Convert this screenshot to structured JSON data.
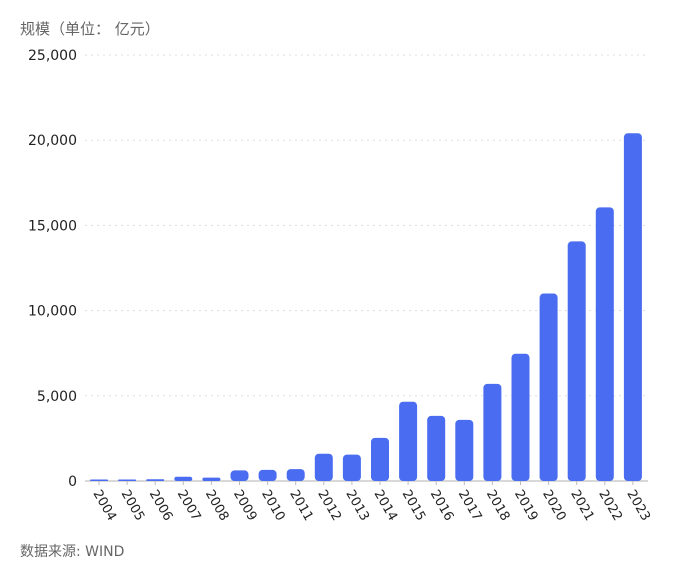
{
  "chart_data": {
    "type": "bar",
    "ylabel": "规模（单位： 亿元）",
    "source": "数据来源: WIND",
    "categories": [
      "2004",
      "2005",
      "2006",
      "2007",
      "2008",
      "2009",
      "2010",
      "2011",
      "2012",
      "2013",
      "2014",
      "2015",
      "2016",
      "2017",
      "2018",
      "2019",
      "2020",
      "2021",
      "2022",
      "2023"
    ],
    "values": [
      20,
      30,
      100,
      250,
      200,
      620,
      650,
      700,
      1600,
      1550,
      2530,
      4650,
      3820,
      3590,
      5700,
      7470,
      11000,
      14060,
      16060,
      20410
    ],
    "ylim": [
      0,
      25000
    ],
    "yticks": [
      0,
      5000,
      10000,
      15000,
      20000,
      25000
    ],
    "ytick_labels": [
      "0",
      "5,000",
      "10,000",
      "15,000",
      "20,000",
      "25,000"
    ],
    "grid": true,
    "bar_color": "#4a6cf0"
  }
}
